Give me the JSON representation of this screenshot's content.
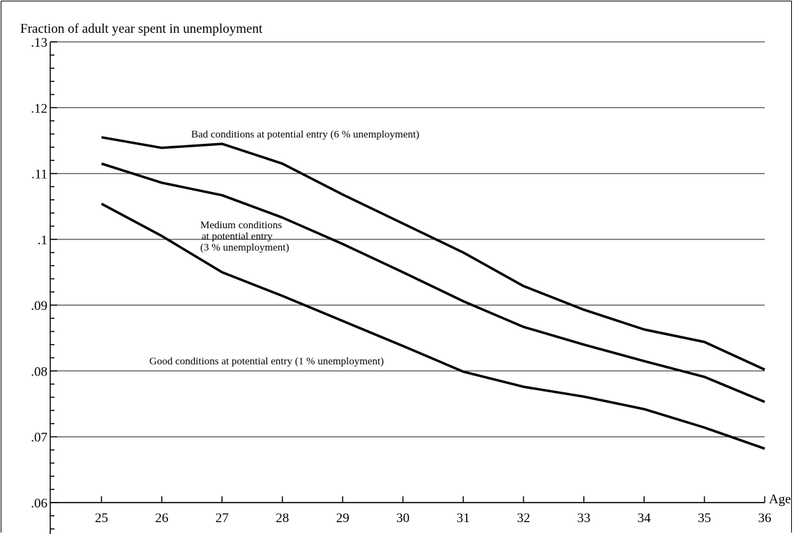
{
  "chart_data": {
    "type": "line",
    "ylabel": "Fraction of adult year spent in unemployment",
    "xlabel": "Age",
    "x": [
      25,
      26,
      27,
      28,
      29,
      30,
      31,
      32,
      33,
      34,
      35,
      36
    ],
    "xlim": [
      24.15,
      36
    ],
    "ylim": [
      0.06,
      0.13
    ],
    "yticks": [
      ".06",
      ".07",
      ".08",
      ".09",
      ".1",
      ".11",
      ".12",
      ".13"
    ],
    "xticks": [
      "25",
      "26",
      "27",
      "28",
      "29",
      "30",
      "31",
      "32",
      "33",
      "34",
      "35",
      "36"
    ],
    "grid": "horizontal",
    "series": [
      {
        "name": "Bad conditions at potential entry (6 % unemployment)",
        "values": [
          0.1155,
          0.1139,
          0.1145,
          0.1115,
          0.1068,
          0.1024,
          0.098,
          0.0929,
          0.0893,
          0.0863,
          0.0844,
          0.0802
        ]
      },
      {
        "name": "Medium conditions at potential entry (3 % unemployment)",
        "values": [
          0.1115,
          0.1086,
          0.1067,
          0.1033,
          0.0993,
          0.095,
          0.0906,
          0.0867,
          0.084,
          0.0815,
          0.0791,
          0.0753
        ]
      },
      {
        "name": "Good conditions at potential entry (1 % unemployment)",
        "values": [
          0.1054,
          0.1005,
          0.095,
          0.0914,
          0.0876,
          0.0838,
          0.0799,
          0.0776,
          0.0761,
          0.0742,
          0.0714,
          0.0682
        ]
      }
    ],
    "annotations": {
      "bad": "Bad conditions at potential entry (6 % unemployment)",
      "medium_1": "Medium conditions",
      "medium_2": "at potential entry",
      "medium_3": "(3 % unemployment)",
      "good": "Good conditions at potential entry (1 % unemployment)"
    }
  }
}
